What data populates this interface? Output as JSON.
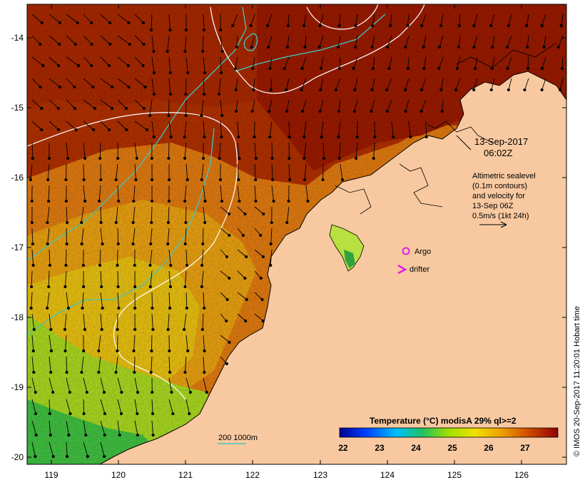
{
  "map": {
    "date_line1": "13-Sep-2017",
    "date_line2": "06:02Z",
    "legend_lines": [
      "Altimetric sealevel",
      "(0.1m contours)",
      "and velocity for",
      "13-Sep 06Z",
      "0.5m/s (1kt 24h)"
    ],
    "argo_label": "Argo",
    "drifter_label": "drifter",
    "credit": "© IMOS 20-Sep-2017 11:20:01 Hobart time",
    "bathy_label": "200  1000m",
    "colorbar_title": "Temperature (°C) modisA 29% ql>=2",
    "colorbar_ticks": [
      "22",
      "23",
      "24",
      "25",
      "26",
      "27"
    ],
    "x_ticks": [
      "119",
      "120",
      "121",
      "122",
      "123",
      "124",
      "125",
      "126"
    ],
    "y_ticks": [
      "-14",
      "-15",
      "-16",
      "-17",
      "-18",
      "-19",
      "-20"
    ],
    "colors": {
      "land": "#f8c9a0",
      "coast": "#000000",
      "contour": "#ffffff",
      "bathy": "#40c8c0",
      "argo": "#e020e0",
      "drifter": "#e020e0"
    }
  }
}
